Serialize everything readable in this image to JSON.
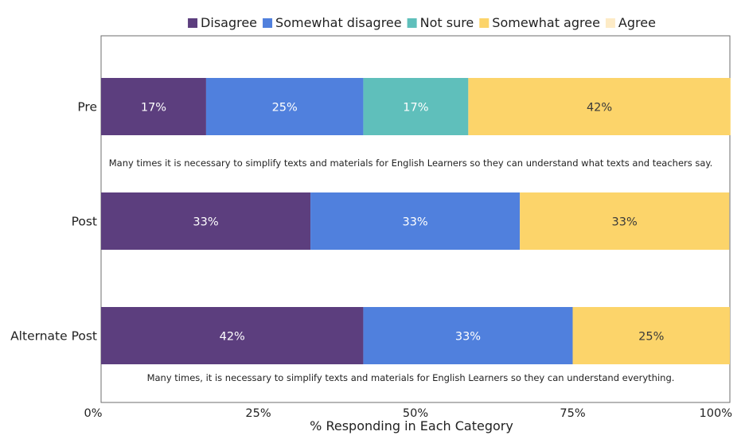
{
  "chart_data": {
    "type": "bar",
    "orientation": "horizontal",
    "stacked": true,
    "categories": [
      "Pre",
      "Post",
      "Alternate Post"
    ],
    "series": [
      {
        "name": "Disagree",
        "color": "#5c3e7e",
        "values": [
          16.7,
          33.3,
          41.7
        ],
        "labels": [
          "17%",
          "33%",
          "42%"
        ]
      },
      {
        "name": "Somewhat disagree",
        "color": "#5080dd",
        "values": [
          25.0,
          33.3,
          33.3
        ],
        "labels": [
          "25%",
          "33%",
          "33%"
        ]
      },
      {
        "name": "Not sure",
        "color": "#5fbfbb",
        "values": [
          16.7,
          0,
          0
        ],
        "labels": [
          "17%",
          "",
          ""
        ]
      },
      {
        "name": "Somewhat agree",
        "color": "#fcd46a",
        "values": [
          41.7,
          33.3,
          25.0
        ],
        "labels": [
          "42%",
          "33%",
          "25%"
        ]
      },
      {
        "name": "Agree",
        "color": "#fdebc6",
        "values": [
          0,
          0,
          0
        ],
        "labels": [
          "",
          "",
          ""
        ]
      }
    ],
    "xlabel": "% Responding in Each Category",
    "ylabel": "",
    "xlim": [
      0,
      100
    ],
    "xticks": [
      "0%",
      "25%",
      "50%",
      "75%",
      "100%"
    ],
    "legend_position": "top",
    "grid": false,
    "annotations": [
      "Many times it is necessary to simplify texts and materials for English Learners so they can understand what texts and teachers say.",
      "Many times, it is necessary to simplify texts and materials for English Learners so they can understand everything."
    ]
  }
}
